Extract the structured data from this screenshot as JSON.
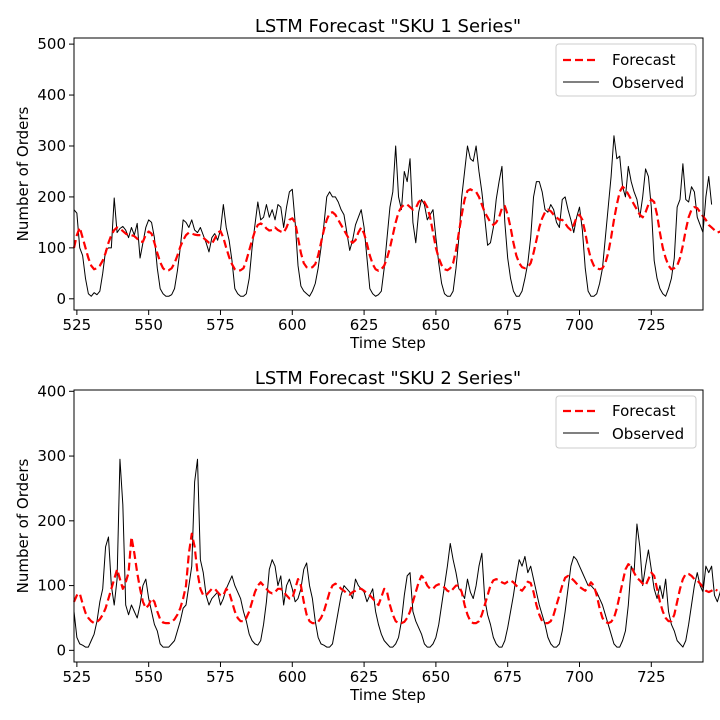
{
  "chart_data": [
    {
      "type": "line",
      "title": "LSTM Forecast \"SKU 1 Series\"",
      "xlabel": "Time Step",
      "ylabel": "Number of Orders",
      "xlim": [
        524,
        743
      ],
      "ylim": [
        -22,
        512
      ],
      "xticks": [
        525,
        550,
        575,
        600,
        625,
        650,
        675,
        700,
        725
      ],
      "yticks": [
        0,
        100,
        200,
        300,
        400,
        500
      ],
      "legend": "top-right",
      "grid": false,
      "series": [
        {
          "name": "Forecast",
          "color": "#ff0000",
          "style": "dashed",
          "x_start": 524,
          "values": [
            100,
            125,
            140,
            120,
            100,
            80,
            65,
            58,
            60,
            65,
            75,
            90,
            110,
            125,
            135,
            140,
            138,
            133,
            128,
            125,
            125,
            123,
            118,
            112,
            112,
            126,
            132,
            128,
            110,
            90,
            72,
            60,
            55,
            56,
            60,
            70,
            85,
            102,
            115,
            125,
            130,
            128,
            126,
            125,
            125,
            120,
            115,
            110,
            108,
            118,
            130,
            133,
            120,
            100,
            82,
            68,
            58,
            55,
            56,
            60,
            75,
            95,
            115,
            133,
            145,
            148,
            145,
            138,
            134,
            135,
            140,
            135,
            132,
            130,
            140,
            155,
            158,
            150,
            120,
            90,
            70,
            62,
            60,
            62,
            68,
            85,
            110,
            135,
            155,
            168,
            170,
            165,
            155,
            145,
            135,
            125,
            115,
            110,
            115,
            130,
            140,
            128,
            108,
            85,
            68,
            58,
            55,
            58,
            65,
            80,
            100,
            125,
            150,
            170,
            180,
            185,
            185,
            180,
            175,
            178,
            190,
            195,
            190,
            180,
            160,
            130,
            100,
            80,
            66,
            58,
            56,
            60,
            70,
            95,
            130,
            165,
            195,
            212,
            215,
            212,
            210,
            200,
            185,
            170,
            160,
            150,
            145,
            150,
            160,
            178,
            182,
            165,
            140,
            110,
            85,
            70,
            62,
            60,
            62,
            70,
            90,
            115,
            140,
            158,
            170,
            175,
            172,
            165,
            160,
            155,
            155,
            148,
            140,
            135,
            145,
            160,
            165,
            155,
            130,
            100,
            78,
            65,
            60,
            58,
            60,
            70,
            90,
            120,
            155,
            185,
            210,
            220,
            215,
            205,
            195,
            185,
            175,
            165,
            160,
            170,
            185,
            195,
            190,
            165,
            130,
            100,
            80,
            65,
            58,
            60,
            65,
            80,
            105,
            135,
            160,
            175,
            180,
            178,
            170,
            162,
            155,
            145,
            140,
            135,
            130,
            132,
            135
          ]
        },
        {
          "name": "Observed",
          "color": "#000000",
          "style": "solid",
          "x_start": 524,
          "values": [
            175,
            168,
            100,
            85,
            40,
            10,
            5,
            12,
            8,
            15,
            50,
            95,
            100,
            100,
            198,
            130,
            138,
            142,
            135,
            120,
            140,
            125,
            148,
            80,
            110,
            140,
            155,
            150,
            120,
            60,
            20,
            10,
            5,
            5,
            8,
            20,
            55,
            100,
            155,
            150,
            140,
            155,
            135,
            130,
            140,
            125,
            110,
            92,
            120,
            128,
            115,
            135,
            185,
            140,
            115,
            75,
            20,
            10,
            5,
            5,
            10,
            40,
            100,
            145,
            190,
            155,
            160,
            185,
            160,
            175,
            155,
            185,
            180,
            140,
            180,
            210,
            215,
            150,
            65,
            25,
            15,
            10,
            5,
            15,
            30,
            60,
            100,
            145,
            200,
            210,
            200,
            200,
            190,
            175,
            165,
            130,
            95,
            115,
            145,
            160,
            175,
            140,
            80,
            20,
            10,
            5,
            8,
            15,
            60,
            120,
            180,
            210,
            300,
            200,
            175,
            250,
            230,
            275,
            150,
            110,
            170,
            195,
            185,
            155,
            165,
            175,
            120,
            70,
            30,
            10,
            5,
            5,
            15,
            60,
            120,
            200,
            250,
            300,
            275,
            270,
            300,
            250,
            210,
            160,
            105,
            110,
            140,
            195,
            230,
            260,
            150,
            80,
            40,
            15,
            5,
            5,
            15,
            40,
            70,
            120,
            200,
            230,
            230,
            210,
            175,
            170,
            185,
            175,
            150,
            140,
            195,
            200,
            175,
            155,
            130,
            160,
            180,
            135,
            60,
            15,
            5,
            5,
            10,
            30,
            60,
            120,
            180,
            240,
            320,
            275,
            280,
            220,
            200,
            260,
            230,
            210,
            195,
            160,
            200,
            255,
            240,
            180,
            75,
            40,
            20,
            10,
            5,
            20,
            40,
            80,
            180,
            195,
            265,
            195,
            190,
            220,
            210,
            160,
            145,
            130,
            200,
            240,
            185
          ]
        }
      ]
    },
    {
      "type": "line",
      "title": "LSTM Forecast \"SKU 2 Series\"",
      "xlabel": "Time Step",
      "ylabel": "Number of Orders",
      "xlim": [
        524,
        743
      ],
      "ylim": [
        -18,
        402
      ],
      "xticks": [
        525,
        550,
        575,
        600,
        625,
        650,
        675,
        700,
        725
      ],
      "yticks": [
        0,
        100,
        200,
        300,
        400
      ],
      "legend": "top-right",
      "grid": false,
      "series": [
        {
          "name": "Forecast",
          "color": "#ff0000",
          "style": "dashed",
          "x_start": 524,
          "values": [
            75,
            85,
            88,
            72,
            58,
            50,
            45,
            42,
            44,
            48,
            55,
            65,
            80,
            95,
            110,
            125,
            110,
            95,
            105,
            120,
            175,
            150,
            120,
            95,
            75,
            65,
            70,
            80,
            75,
            60,
            48,
            43,
            42,
            42,
            44,
            48,
            55,
            65,
            80,
            100,
            150,
            180,
            160,
            120,
            95,
            85,
            85,
            90,
            95,
            95,
            90,
            85,
            85,
            95,
            90,
            75,
            60,
            50,
            45,
            45,
            50,
            60,
            75,
            90,
            100,
            105,
            100,
            95,
            90,
            88,
            90,
            95,
            95,
            90,
            85,
            80,
            80,
            95,
            110,
            100,
            75,
            55,
            45,
            42,
            42,
            44,
            50,
            60,
            75,
            90,
            100,
            103,
            100,
            95,
            92,
            88,
            86,
            90,
            92,
            95,
            95,
            92,
            88,
            85,
            80,
            75,
            70,
            82,
            95,
            90,
            70,
            55,
            45,
            42,
            42,
            44,
            50,
            60,
            75,
            90,
            105,
            115,
            110,
            100,
            95,
            95,
            100,
            102,
            100,
            97,
            92,
            90,
            95,
            100,
            100,
            90,
            70,
            55,
            45,
            42,
            42,
            45,
            55,
            70,
            85,
            100,
            108,
            110,
            108,
            105,
            103,
            106,
            108,
            105,
            100,
            95,
            92,
            98,
            106,
            104,
            90,
            70,
            55,
            45,
            42,
            42,
            45,
            55,
            70,
            85,
            100,
            112,
            115,
            112,
            108,
            103,
            98,
            95,
            92,
            98,
            105,
            100,
            85,
            65,
            50,
            44,
            42,
            44,
            50,
            65,
            85,
            105,
            125,
            133,
            130,
            120,
            112,
            108,
            103,
            100,
            110,
            120,
            115,
            95,
            75,
            60,
            50,
            45,
            45,
            55,
            75,
            95,
            110,
            118,
            118,
            115,
            110,
            108,
            103,
            98,
            92,
            90,
            92,
            95,
            92
          ]
        },
        {
          "name": "Observed",
          "color": "#000000",
          "style": "solid",
          "x_start": 524,
          "values": [
            60,
            20,
            10,
            8,
            5,
            5,
            15,
            25,
            45,
            75,
            95,
            160,
            175,
            100,
            70,
            110,
            295,
            225,
            70,
            55,
            70,
            60,
            50,
            70,
            100,
            110,
            80,
            60,
            40,
            30,
            10,
            5,
            5,
            5,
            10,
            15,
            30,
            45,
            65,
            70,
            100,
            130,
            260,
            295,
            140,
            120,
            85,
            70,
            80,
            85,
            90,
            70,
            80,
            95,
            105,
            115,
            100,
            90,
            80,
            60,
            45,
            25,
            15,
            10,
            8,
            15,
            40,
            75,
            125,
            140,
            130,
            100,
            115,
            70,
            100,
            110,
            95,
            75,
            80,
            95,
            125,
            135,
            100,
            80,
            45,
            20,
            10,
            8,
            5,
            5,
            10,
            35,
            60,
            85,
            100,
            95,
            90,
            80,
            110,
            100,
            95,
            90,
            75,
            85,
            95,
            60,
            40,
            25,
            15,
            10,
            5,
            5,
            10,
            20,
            45,
            85,
            115,
            120,
            60,
            45,
            35,
            25,
            10,
            5,
            5,
            10,
            20,
            40,
            70,
            100,
            130,
            165,
            140,
            120,
            95,
            90,
            80,
            110,
            90,
            80,
            100,
            130,
            150,
            80,
            55,
            40,
            20,
            10,
            5,
            5,
            15,
            35,
            60,
            85,
            115,
            140,
            130,
            145,
            120,
            130,
            110,
            90,
            70,
            55,
            40,
            20,
            10,
            5,
            5,
            10,
            30,
            60,
            95,
            130,
            145,
            140,
            130,
            120,
            110,
            100,
            100,
            95,
            90,
            80,
            70,
            55,
            40,
            25,
            10,
            5,
            5,
            15,
            30,
            70,
            130,
            120,
            195,
            160,
            100,
            130,
            155,
            125,
            95,
            80,
            100,
            80,
            110,
            60,
            40,
            30,
            15,
            10,
            5,
            15,
            40,
            70,
            100,
            120,
            100,
            90,
            130,
            120,
            130,
            85,
            75,
            90,
            115,
            135,
            90,
            85
          ]
        }
      ]
    }
  ]
}
